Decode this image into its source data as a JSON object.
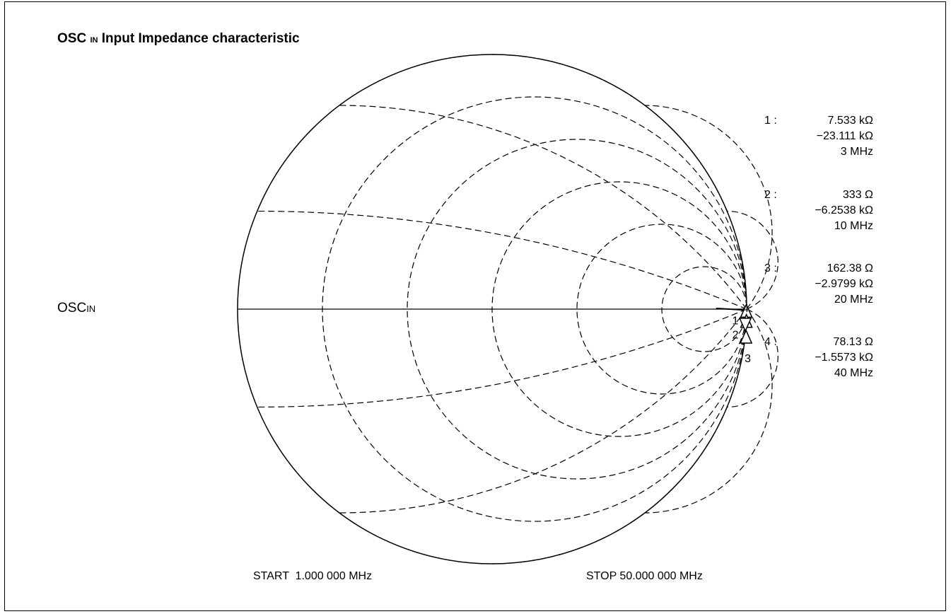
{
  "title": {
    "main": "OSC",
    "sub": "IN",
    "rest": " Input Impedance characteristic"
  },
  "port_label": {
    "main": "OSC",
    "sub": "IN"
  },
  "sweep": {
    "start": "START  1.000 000 MHz",
    "stop": "STOP 50.000 000 MHz"
  },
  "chart_data": {
    "type": "smith",
    "reference_impedance_ohm": 50,
    "grid": {
      "resistance_circles": [
        0.2,
        0.5,
        1,
        2,
        5
      ],
      "reactance_arcs": [
        0.2,
        0.5,
        1,
        2,
        5
      ],
      "line_style": "dashed"
    },
    "markers": [
      {
        "id": "1",
        "label": "1 :",
        "resistance": "7.533 kΩ",
        "reactance": "−23.111 kΩ",
        "frequency": "3 MHz",
        "r_ohm": 7533,
        "x_ohm": -23111
      },
      {
        "id": "2",
        "label": "2 :",
        "resistance": "333 Ω",
        "reactance": "−6.2538 kΩ",
        "frequency": "10 MHz",
        "r_ohm": 333,
        "x_ohm": -6253.8
      },
      {
        "id": "3",
        "label": "3 :",
        "resistance": "162.38 Ω",
        "reactance": "−2.9799 kΩ",
        "frequency": "20 MHz",
        "r_ohm": 162.38,
        "x_ohm": -2979.9
      },
      {
        "id": "4",
        "label": "4 :",
        "resistance": "78.13 Ω",
        "reactance": "−1.5573 kΩ",
        "frequency": "40 MHz",
        "r_ohm": 78.13,
        "x_ohm": -1557.3
      }
    ],
    "sweep_start_mhz": 1,
    "sweep_stop_mhz": 50
  }
}
